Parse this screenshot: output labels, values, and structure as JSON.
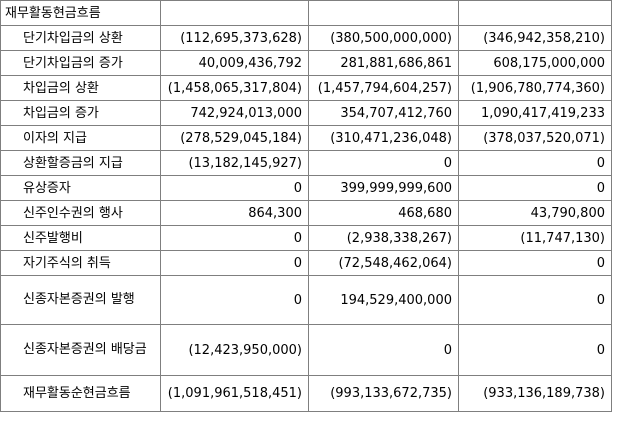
{
  "section_title": "재무활동현금흐름",
  "rows": [
    {
      "label": "단기차입금의 상환",
      "v1": "(112,695,373,628)",
      "v2": "(380,500,000,000)",
      "v3": "(346,942,358,210)"
    },
    {
      "label": "단기차입금의 증가",
      "v1": "40,009,436,792",
      "v2": "281,881,686,861",
      "v3": "608,175,000,000"
    },
    {
      "label": "차입금의 상환",
      "v1": "(1,458,065,317,804)",
      "v2": "(1,457,794,604,257)",
      "v3": "(1,906,780,774,360)"
    },
    {
      "label": "차입금의 증가",
      "v1": "742,924,013,000",
      "v2": "354,707,412,760",
      "v3": "1,090,417,419,233"
    },
    {
      "label": "이자의 지급",
      "v1": "(278,529,045,184)",
      "v2": "(310,471,236,048)",
      "v3": "(378,037,520,071)"
    },
    {
      "label": "상환할증금의 지급",
      "v1": "(13,182,145,927)",
      "v2": "0",
      "v3": "0"
    },
    {
      "label": "유상증자",
      "v1": "0",
      "v2": "399,999,999,600",
      "v3": "0"
    },
    {
      "label": "신주인수권의 행사",
      "v1": "864,300",
      "v2": "468,680",
      "v3": "43,790,800"
    },
    {
      "label": "신주발행비",
      "v1": "0",
      "v2": "(2,938,338,267)",
      "v3": "(11,747,130)"
    },
    {
      "label": "자기주식의 취득",
      "v1": "0",
      "v2": "(72,548,462,064)",
      "v3": "0"
    },
    {
      "label": "신종자본증권의 발행",
      "v1": "0",
      "v2": "194,529,400,000",
      "v3": "0"
    },
    {
      "label": "신종자본증권의 배당금",
      "v1": "(12,423,950,000)",
      "v2": "0",
      "v3": "0"
    },
    {
      "label": "재무활동순현금흐름",
      "v1": "(1,091,961,518,451)",
      "v2": "(993,133,672,735)",
      "v3": "(933,136,189,738)"
    }
  ]
}
